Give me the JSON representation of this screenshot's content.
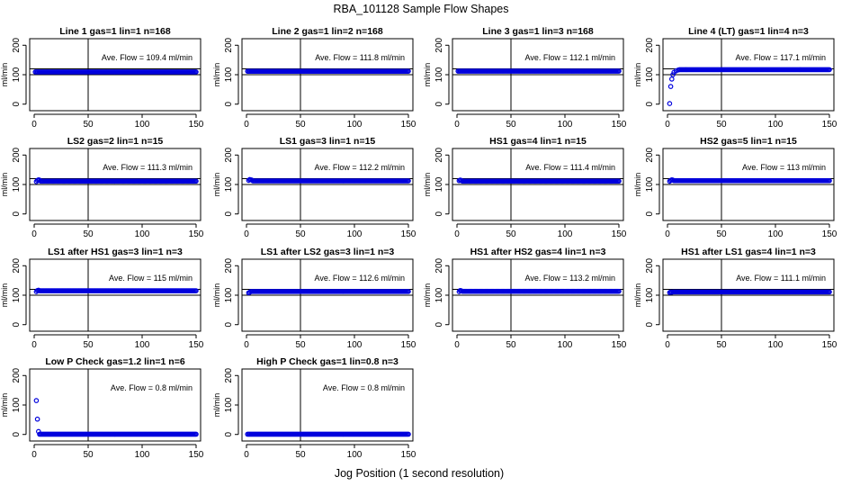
{
  "figure": {
    "title": "RBA_101128  Sample Flow Shapes",
    "xlabel": "Jog Position (1 second resolution)"
  },
  "chart_data": [
    {
      "type": "scatter",
      "title": "Line 1 gas=1 lin=1 n=168",
      "ylabel": "ml/min",
      "xlim": [
        0,
        150
      ],
      "ylim": [
        -10,
        210
      ],
      "xticks": [
        0,
        50,
        100,
        150
      ],
      "yticks": [
        0,
        100,
        200
      ],
      "vline": 50,
      "hlines": [
        100,
        120
      ],
      "annotation": "Ave. Flow =  109.4  ml/min",
      "profile": {
        "start": [],
        "level": 109.4
      }
    },
    {
      "type": "scatter",
      "title": "Line 2 gas=1 lin=2 n=168",
      "ylabel": "ml/min",
      "xlim": [
        0,
        150
      ],
      "ylim": [
        -10,
        210
      ],
      "xticks": [
        0,
        50,
        100,
        150
      ],
      "yticks": [
        0,
        100,
        200
      ],
      "vline": 50,
      "hlines": [
        100,
        120
      ],
      "annotation": "Ave. Flow =  111.8  ml/min",
      "profile": {
        "start": [],
        "level": 111.8
      }
    },
    {
      "type": "scatter",
      "title": "Line 3 gas=1 lin=3 n=168",
      "ylabel": "ml/min",
      "xlim": [
        0,
        150
      ],
      "ylim": [
        -10,
        210
      ],
      "xticks": [
        0,
        50,
        100,
        150
      ],
      "yticks": [
        0,
        100,
        200
      ],
      "vline": 50,
      "hlines": [
        100,
        120
      ],
      "annotation": "Ave. Flow =  112.1  ml/min",
      "profile": {
        "start": [],
        "level": 112.1
      }
    },
    {
      "type": "scatter",
      "title": "Line 4 (LT) gas=1 lin=4 n=3",
      "ylabel": "ml/min",
      "xlim": [
        0,
        150
      ],
      "ylim": [
        -10,
        210
      ],
      "xticks": [
        0,
        50,
        100,
        150
      ],
      "yticks": [
        0,
        100,
        200
      ],
      "vline": 50,
      "hlines": [
        100,
        120
      ],
      "annotation": "Ave. Flow =  117.1  ml/min",
      "profile": {
        "start": [
          [
            2,
            2
          ],
          [
            3,
            60
          ],
          [
            4,
            85
          ],
          [
            5,
            100
          ],
          [
            6,
            108
          ],
          [
            8,
            113
          ],
          [
            10,
            116
          ]
        ],
        "level": 117.1
      }
    },
    {
      "type": "scatter",
      "title": "LS2 gas=2 lin=1 n=15",
      "ylabel": "ml/min",
      "xlim": [
        0,
        150
      ],
      "ylim": [
        -10,
        210
      ],
      "xticks": [
        0,
        50,
        100,
        150
      ],
      "yticks": [
        0,
        100,
        200
      ],
      "vline": 50,
      "hlines": [
        100,
        120
      ],
      "annotation": "Ave. Flow =  111.3  ml/min",
      "profile": {
        "start": [
          [
            2,
            110
          ],
          [
            3,
            114
          ],
          [
            4,
            116
          ],
          [
            5,
            115
          ]
        ],
        "level": 111.3
      }
    },
    {
      "type": "scatter",
      "title": "LS1 gas=3 lin=1 n=15",
      "ylabel": "ml/min",
      "xlim": [
        0,
        150
      ],
      "ylim": [
        -10,
        210
      ],
      "xticks": [
        0,
        50,
        100,
        150
      ],
      "yticks": [
        0,
        100,
        200
      ],
      "vline": 50,
      "hlines": [
        100,
        120
      ],
      "annotation": "Ave. Flow =  112.2  ml/min",
      "profile": {
        "start": [
          [
            2,
            114
          ],
          [
            3,
            117
          ],
          [
            4,
            116
          ],
          [
            5,
            115
          ]
        ],
        "level": 112.2
      }
    },
    {
      "type": "scatter",
      "title": "HS1 gas=4 lin=1 n=15",
      "ylabel": "ml/min",
      "xlim": [
        0,
        150
      ],
      "ylim": [
        -10,
        210
      ],
      "xticks": [
        0,
        50,
        100,
        150
      ],
      "yticks": [
        0,
        100,
        200
      ],
      "vline": 50,
      "hlines": [
        100,
        120
      ],
      "annotation": "Ave. Flow =  111.4  ml/min",
      "profile": {
        "start": [
          [
            2,
            113
          ],
          [
            3,
            115
          ],
          [
            4,
            114
          ]
        ],
        "level": 111.4
      }
    },
    {
      "type": "scatter",
      "title": "HS2 gas=5 lin=1 n=15",
      "ylabel": "ml/min",
      "xlim": [
        0,
        150
      ],
      "ylim": [
        -10,
        210
      ],
      "xticks": [
        0,
        50,
        100,
        150
      ],
      "yticks": [
        0,
        100,
        200
      ],
      "vline": 50,
      "hlines": [
        100,
        120
      ],
      "annotation": "Ave. Flow =  113  ml/min",
      "profile": {
        "start": [
          [
            2,
            111
          ],
          [
            3,
            114
          ],
          [
            4,
            116
          ],
          [
            5,
            115
          ]
        ],
        "level": 113
      }
    },
    {
      "type": "scatter",
      "title": "LS1 after HS1 gas=3 lin=1 n=3",
      "ylabel": "ml/min",
      "xlim": [
        0,
        150
      ],
      "ylim": [
        -10,
        210
      ],
      "xticks": [
        0,
        50,
        100,
        150
      ],
      "yticks": [
        0,
        100,
        200
      ],
      "vline": 50,
      "hlines": [
        100,
        120
      ],
      "annotation": "Ave. Flow =  115  ml/min",
      "profile": {
        "start": [
          [
            2,
            112
          ],
          [
            3,
            116
          ],
          [
            4,
            117
          ]
        ],
        "level": 115
      }
    },
    {
      "type": "scatter",
      "title": "LS1 after LS2 gas=3 lin=1 n=3",
      "ylabel": "ml/min",
      "xlim": [
        0,
        150
      ],
      "ylim": [
        -10,
        210
      ],
      "xticks": [
        0,
        50,
        100,
        150
      ],
      "yticks": [
        0,
        100,
        200
      ],
      "vline": 50,
      "hlines": [
        100,
        120
      ],
      "annotation": "Ave. Flow =  112.6  ml/min",
      "profile": {
        "start": [
          [
            2,
            108
          ],
          [
            3,
            110
          ]
        ],
        "level": 112.6
      }
    },
    {
      "type": "scatter",
      "title": "HS1 after HS2 gas=4 lin=1 n=3",
      "ylabel": "ml/min",
      "xlim": [
        0,
        150
      ],
      "ylim": [
        -10,
        210
      ],
      "xticks": [
        0,
        50,
        100,
        150
      ],
      "yticks": [
        0,
        100,
        200
      ],
      "vline": 50,
      "hlines": [
        100,
        120
      ],
      "annotation": "Ave. Flow =  113.2  ml/min",
      "profile": {
        "start": [
          [
            2,
            112
          ],
          [
            3,
            116
          ],
          [
            4,
            115
          ]
        ],
        "level": 113.2
      }
    },
    {
      "type": "scatter",
      "title": "HS1 after LS1 gas=4 lin=1 n=3",
      "ylabel": "ml/min",
      "xlim": [
        0,
        150
      ],
      "ylim": [
        -10,
        210
      ],
      "xticks": [
        0,
        50,
        100,
        150
      ],
      "yticks": [
        0,
        100,
        200
      ],
      "vline": 50,
      "hlines": [
        100,
        120
      ],
      "annotation": "Ave. Flow =  111.1  ml/min",
      "profile": {
        "start": [
          [
            2,
            109
          ],
          [
            3,
            111
          ],
          [
            4,
            110
          ]
        ],
        "level": 111.1
      }
    },
    {
      "type": "scatter",
      "title": "Low P Check gas=1.2 lin=1 n=6",
      "ylabel": "ml/min",
      "xlim": [
        0,
        150
      ],
      "ylim": [
        -10,
        210
      ],
      "xticks": [
        0,
        50,
        100,
        150
      ],
      "yticks": [
        0,
        100,
        200
      ],
      "vline": 50,
      "hlines": [],
      "annotation": "Ave. Flow =  0.8  ml/min",
      "profile": {
        "start": [
          [
            2,
            115
          ],
          [
            3,
            52
          ],
          [
            4,
            10
          ]
        ],
        "level": 0.8
      }
    },
    {
      "type": "scatter",
      "title": "High P Check gas=1 lin=0.8 n=3",
      "ylabel": "ml/min",
      "xlim": [
        0,
        150
      ],
      "ylim": [
        -10,
        210
      ],
      "xticks": [
        0,
        50,
        100,
        150
      ],
      "yticks": [
        0,
        100,
        200
      ],
      "vline": 50,
      "hlines": [],
      "annotation": "Ave. Flow =  0.8  ml/min",
      "profile": {
        "start": [],
        "level": 0.8
      }
    }
  ]
}
